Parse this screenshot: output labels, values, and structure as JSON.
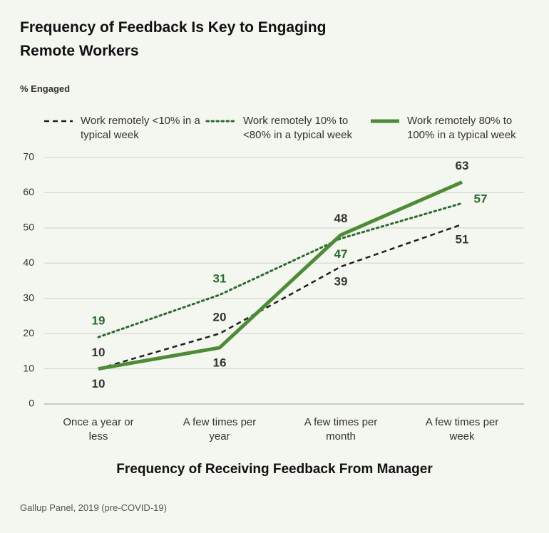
{
  "chart_data": {
    "type": "line",
    "title": "Frequency of Feedback Is Key to Engaging Remote Workers",
    "y_label": "% Engaged",
    "x_label": "Frequency of Receiving Feedback From Manager",
    "source": "Gallup Panel, 2019 (pre-COVID-19)",
    "categories": [
      "Once a year or less",
      "A few times per year",
      "A few times per month",
      "A few times per week"
    ],
    "series": [
      {
        "name": "Work remotely <10% in a typical week",
        "color": "#1f1f1f",
        "style": "dashed",
        "values": [
          10,
          20,
          39,
          51
        ]
      },
      {
        "name": "Work remotely 10% to <80% in a typical week",
        "color": "#2b6a2e",
        "style": "dotted",
        "values": [
          19,
          31,
          47,
          57
        ]
      },
      {
        "name": "Work remotely 80% to 100% in a typical week",
        "color": "#4e8b37",
        "style": "solid",
        "values": [
          10,
          16,
          48,
          63
        ]
      }
    ],
    "ylim": [
      0,
      70
    ],
    "yticks": [
      0,
      10,
      20,
      30,
      40,
      50,
      60,
      70
    ],
    "grid": true
  }
}
